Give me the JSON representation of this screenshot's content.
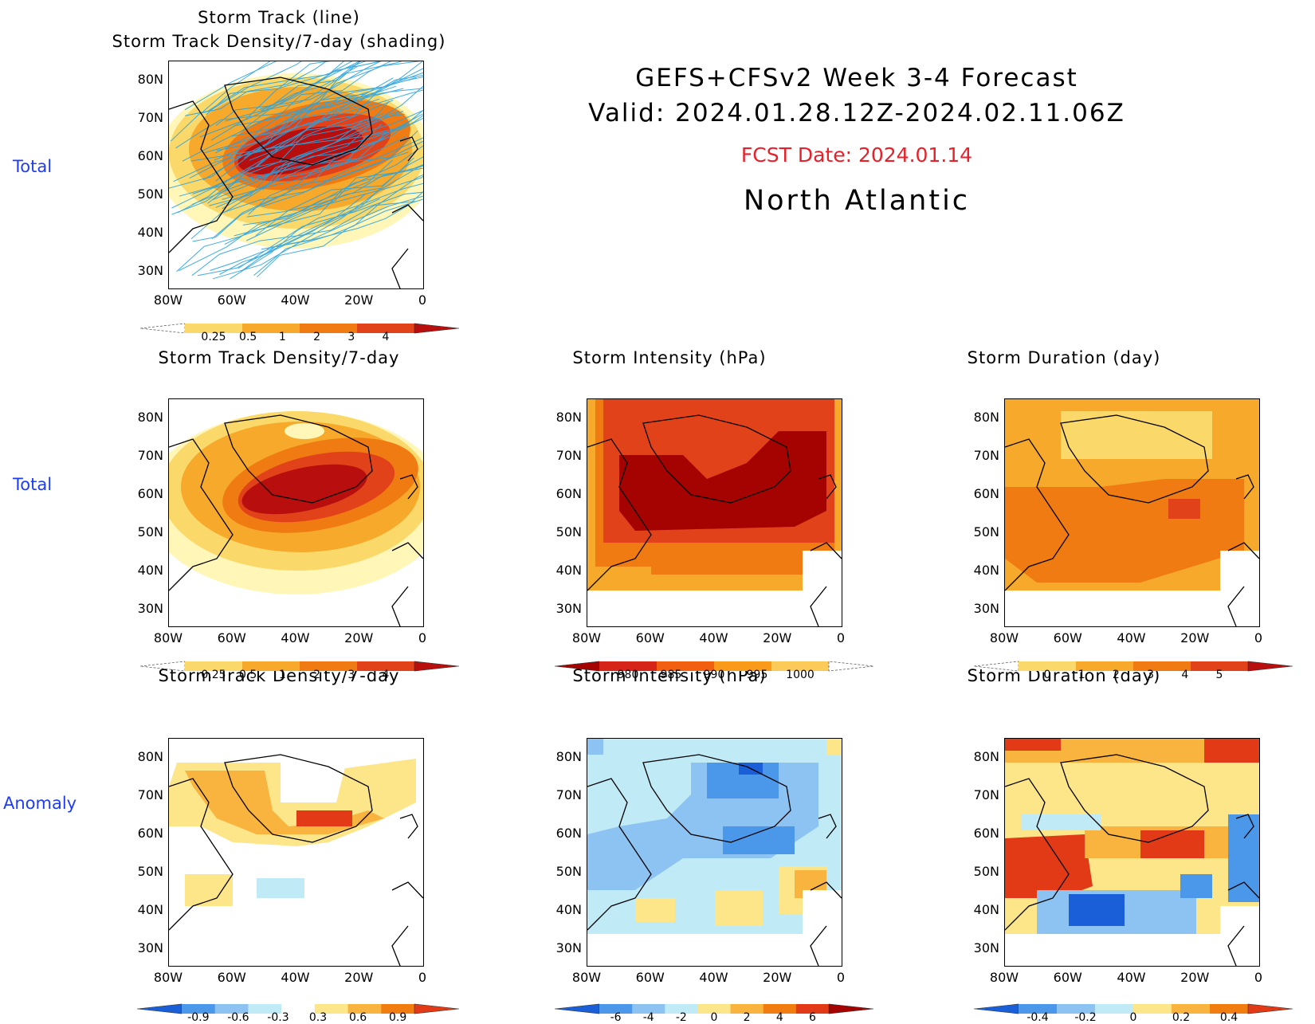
{
  "header": {
    "title_line1": "GEFS+CFSv2 Week 3-4 Forecast",
    "title_line2": "Valid: 2024.01.28.12Z-2024.02.11.06Z",
    "fcst_date": "FCST Date: 2024.01.14",
    "region": "North Atlantic"
  },
  "row_labels": {
    "row1": "Total",
    "row2": "Total",
    "row3": "Anomaly"
  },
  "axes": {
    "lat_ticks": [
      "80N",
      "70N",
      "60N",
      "50N",
      "40N",
      "30N"
    ],
    "lon_ticks": [
      "80W",
      "60W",
      "40W",
      "20W",
      "0"
    ]
  },
  "panels": {
    "p1": {
      "title_a": "Storm Track (line)",
      "title_b": "Storm Track Density/7-day (shading)"
    },
    "p2": {
      "title": "Storm Track Density/7-day"
    },
    "p3": {
      "title": "Storm Intensity (hPa)"
    },
    "p4": {
      "title": "Storm Duration (day)"
    },
    "p5": {
      "title": "Storm Track Density/7-day"
    },
    "p6": {
      "title": "Storm Intensity (hPa)"
    },
    "p7": {
      "title": "Storm Duration (day)"
    }
  },
  "colorbars": {
    "density": {
      "labels": [
        "0.25",
        "0.5",
        "1",
        "2",
        "3",
        "4"
      ],
      "colors": [
        "#fff6b8",
        "#fbd86a",
        "#f6a92a",
        "#f07b12",
        "#e2421a",
        "#b80e0e"
      ]
    },
    "intensity": {
      "labels": [
        "980",
        "985",
        "990",
        "995",
        "1000"
      ],
      "colors": [
        "#a50202",
        "#d62518",
        "#f25f11",
        "#f99a1b",
        "#fcca58",
        "#fff3b3"
      ]
    },
    "duration": {
      "labels": [
        "0",
        "1",
        "2",
        "3",
        "4",
        "5"
      ],
      "colors": [
        "#fff6b8",
        "#fbd86a",
        "#f6a92a",
        "#f07b12",
        "#e2421a",
        "#b80e0e"
      ]
    },
    "anom_density": {
      "labels": [
        "-0.9",
        "-0.6",
        "-0.3",
        "0.3",
        "0.6",
        "0.9"
      ],
      "colors": [
        "#1a5fd8",
        "#4b97ea",
        "#8cc3f2",
        "#bfeaf6",
        "#ffffff",
        "#fde58a",
        "#f9b440",
        "#f17c10",
        "#e23a16"
      ]
    },
    "anom_intensity": {
      "labels": [
        "-6",
        "-4",
        "-2",
        "0",
        "2",
        "4",
        "6"
      ],
      "colors": [
        "#1a5fd8",
        "#4b97ea",
        "#8cc3f2",
        "#bfeaf6",
        "#fde58a",
        "#f9b440",
        "#f17c10",
        "#e23a16",
        "#a50202"
      ]
    },
    "anom_duration": {
      "labels": [
        "-0.4",
        "-0.2",
        "0",
        "0.2",
        "0.4"
      ],
      "colors": [
        "#1a5fd8",
        "#4b97ea",
        "#8cc3f2",
        "#bfeaf6",
        "#fde58a",
        "#f9b440",
        "#f17c10",
        "#e23a16"
      ]
    }
  }
}
